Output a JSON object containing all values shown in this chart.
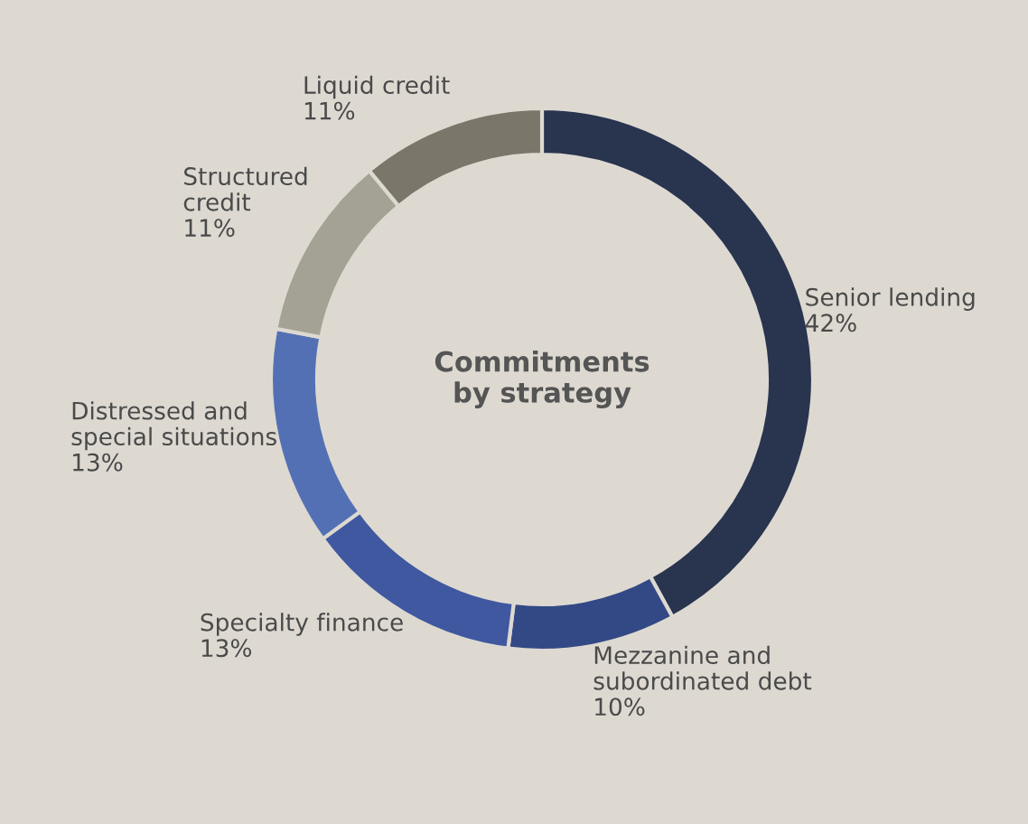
{
  "chart_data": {
    "type": "donut",
    "title": "Commitments\nby strategy",
    "categories": [
      "Senior lending",
      "Mezzanine and\nsubordinated debt",
      "Specialty finance",
      "Distressed and\nspecial situations",
      "Structured\ncredit",
      "Liquid credit"
    ],
    "values": [
      42,
      10,
      13,
      13,
      11,
      11
    ],
    "value_labels": [
      "42%",
      "10%",
      "13%",
      "13%",
      "11%",
      "11%"
    ],
    "colors": [
      "#29344f",
      "#334985",
      "#3f589f",
      "#5470b5",
      "#a3a295",
      "#7a776a"
    ],
    "legend": false
  }
}
